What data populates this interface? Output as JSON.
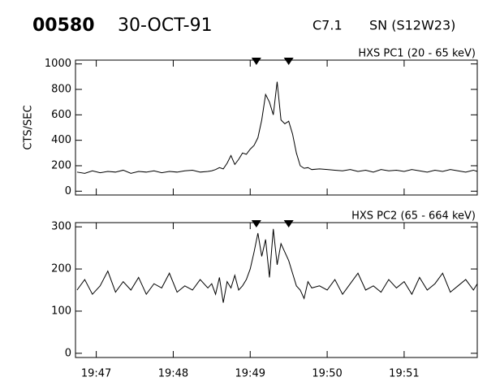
{
  "header": {
    "id": "00580",
    "date": "30-OCT-91",
    "class": "C7.1",
    "location": "SN (S12W23)"
  },
  "chart_data": [
    {
      "type": "line",
      "label": "HXS PC1 (20 - 65 keV)",
      "y_label": "CTS/SEC",
      "xlim": [
        1186.73,
        1191.95
      ],
      "ylim": [
        -30,
        1030
      ],
      "xticks": [
        {
          "value": 1187,
          "label": "19:47"
        },
        {
          "value": 1188,
          "label": "19:48"
        },
        {
          "value": 1189,
          "label": "19:49"
        },
        {
          "value": 1190,
          "label": "19:50"
        },
        {
          "value": 1191,
          "label": "19:51"
        }
      ],
      "yticks": [
        0,
        200,
        400,
        600,
        800,
        1000
      ],
      "markers": [
        1189.08,
        1189.5
      ],
      "x": [
        1186.75,
        1186.85,
        1186.95,
        1187.05,
        1187.15,
        1187.25,
        1187.35,
        1187.45,
        1187.55,
        1187.65,
        1187.75,
        1187.85,
        1187.95,
        1188.05,
        1188.15,
        1188.25,
        1188.35,
        1188.45,
        1188.5,
        1188.55,
        1188.6,
        1188.65,
        1188.7,
        1188.75,
        1188.8,
        1188.85,
        1188.9,
        1188.95,
        1189.0,
        1189.05,
        1189.1,
        1189.15,
        1189.2,
        1189.25,
        1189.3,
        1189.35,
        1189.4,
        1189.45,
        1189.5,
        1189.55,
        1189.6,
        1189.65,
        1189.7,
        1189.75,
        1189.8,
        1189.9,
        1190.0,
        1190.1,
        1190.2,
        1190.3,
        1190.4,
        1190.5,
        1190.6,
        1190.7,
        1190.8,
        1190.9,
        1191.0,
        1191.1,
        1191.2,
        1191.3,
        1191.4,
        1191.5,
        1191.6,
        1191.7,
        1191.8,
        1191.9,
        1191.95
      ],
      "series": [
        {
          "color": "#000000",
          "values": [
            150,
            140,
            160,
            145,
            155,
            150,
            165,
            140,
            155,
            150,
            160,
            145,
            155,
            150,
            160,
            165,
            150,
            155,
            160,
            170,
            185,
            175,
            220,
            280,
            210,
            250,
            300,
            290,
            330,
            360,
            420,
            560,
            760,
            700,
            600,
            860,
            560,
            530,
            550,
            450,
            300,
            200,
            180,
            185,
            170,
            175,
            170,
            165,
            160,
            170,
            155,
            165,
            150,
            170,
            160,
            165,
            155,
            170,
            160,
            150,
            165,
            155,
            170,
            160,
            150,
            165,
            155
          ]
        }
      ]
    },
    {
      "type": "line",
      "label": "HXS PC2 (65 - 664 keV)",
      "xlim": [
        1186.73,
        1191.95
      ],
      "ylim": [
        -10,
        310
      ],
      "xticks": [
        {
          "value": 1187,
          "label": "19:47"
        },
        {
          "value": 1188,
          "label": "19:48"
        },
        {
          "value": 1189,
          "label": "19:49"
        },
        {
          "value": 1190,
          "label": "19:50"
        },
        {
          "value": 1191,
          "label": "19:51"
        }
      ],
      "yticks": [
        0,
        100,
        200,
        300
      ],
      "markers": [
        1189.08,
        1189.5
      ],
      "x": [
        1186.75,
        1186.85,
        1186.95,
        1187.05,
        1187.15,
        1187.25,
        1187.35,
        1187.45,
        1187.55,
        1187.65,
        1187.75,
        1187.85,
        1187.95,
        1188.05,
        1188.15,
        1188.25,
        1188.35,
        1188.45,
        1188.5,
        1188.55,
        1188.6,
        1188.65,
        1188.7,
        1188.75,
        1188.8,
        1188.85,
        1188.9,
        1188.95,
        1189.0,
        1189.05,
        1189.1,
        1189.15,
        1189.2,
        1189.25,
        1189.3,
        1189.35,
        1189.4,
        1189.45,
        1189.5,
        1189.55,
        1189.6,
        1189.65,
        1189.7,
        1189.75,
        1189.8,
        1189.9,
        1190.0,
        1190.1,
        1190.2,
        1190.3,
        1190.4,
        1190.5,
        1190.6,
        1190.7,
        1190.8,
        1190.9,
        1191.0,
        1191.1,
        1191.2,
        1191.3,
        1191.4,
        1191.5,
        1191.6,
        1191.7,
        1191.8,
        1191.9,
        1191.95
      ],
      "series": [
        {
          "color": "#000000",
          "values": [
            150,
            175,
            140,
            160,
            195,
            145,
            170,
            150,
            180,
            140,
            165,
            155,
            190,
            145,
            160,
            150,
            175,
            155,
            165,
            140,
            180,
            120,
            170,
            155,
            185,
            150,
            160,
            175,
            200,
            240,
            285,
            230,
            270,
            180,
            295,
            210,
            260,
            240,
            220,
            190,
            160,
            150,
            130,
            170,
            155,
            160,
            150,
            175,
            140,
            165,
            190,
            150,
            160,
            145,
            175,
            155,
            170,
            140,
            180,
            150,
            165,
            190,
            145,
            160,
            175,
            150,
            165
          ]
        }
      ]
    }
  ]
}
